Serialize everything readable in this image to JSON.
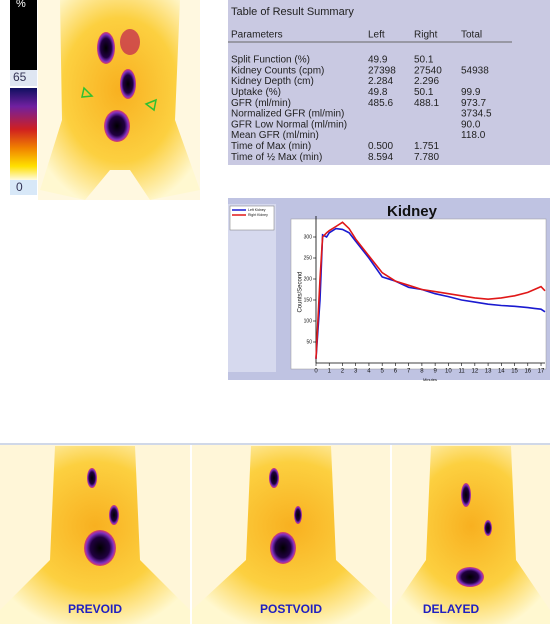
{
  "colorbar": {
    "top_label": "%",
    "mid_label": "65",
    "bottom_label": "0"
  },
  "table": {
    "title": "Table of Result Summary",
    "columns": [
      "Parameters",
      "Left",
      "Right",
      "Total"
    ],
    "rows": [
      [
        "Split Function (%)",
        "49.9",
        "50.1",
        null
      ],
      [
        "Kidney Counts (cpm)",
        "27398",
        "27540",
        "54938"
      ],
      [
        "Kidney Depth (cm)",
        "2.284",
        "2.296",
        null
      ],
      [
        "Uptake (%)",
        "49.8",
        "50.1",
        "99.9"
      ],
      [
        "GFR (ml/min)",
        "485.6",
        "488.1",
        "973.7"
      ],
      [
        "Normalized GFR (ml/min)",
        null,
        null,
        "3734.5"
      ],
      [
        "GFR Low Normal (ml/min)",
        null,
        null,
        "90.0"
      ],
      [
        "Mean GFR (ml/min)",
        null,
        null,
        "118.0"
      ],
      [
        "Time of Max (min)",
        "0.500",
        "1.751",
        null
      ],
      [
        "Time of ½ Max (min)",
        "8.594",
        "7.780",
        null
      ]
    ]
  },
  "chart_data": {
    "type": "line",
    "title": "Kidney",
    "y_label": "Counts/Second",
    "x_label": "Minutes",
    "x": [
      0,
      0.3,
      0.5,
      0.8,
      1,
      1.5,
      2,
      2.5,
      3,
      4,
      5,
      6,
      7,
      8,
      9,
      10,
      11,
      12,
      13,
      14,
      15,
      16,
      16.5,
      17,
      17.3
    ],
    "series": [
      {
        "name": "Left Kidney",
        "color": "#1a1ad0",
        "values": [
          10,
          150,
          305,
          300,
          310,
          320,
          318,
          310,
          290,
          250,
          205,
          195,
          180,
          175,
          165,
          158,
          150,
          145,
          140,
          137,
          135,
          132,
          130,
          128,
          122
        ]
      },
      {
        "name": "Right Kidney",
        "color": "#e01818",
        "values": [
          10,
          200,
          300,
          310,
          315,
          325,
          335,
          320,
          295,
          255,
          215,
          195,
          185,
          175,
          170,
          165,
          160,
          155,
          152,
          155,
          160,
          168,
          175,
          182,
          172
        ]
      }
    ],
    "xlim": [
      0,
      17.3
    ],
    "ylim": [
      0,
      350
    ],
    "xticks": [
      0,
      1,
      2,
      3,
      4,
      5,
      6,
      7,
      8,
      9,
      10,
      11,
      12,
      13,
      14,
      15,
      16,
      17
    ],
    "yticks": [
      50,
      100,
      150,
      200,
      250,
      300
    ]
  },
  "images": [
    "PREVOID",
    "POSTVOID",
    "DELAYED"
  ]
}
